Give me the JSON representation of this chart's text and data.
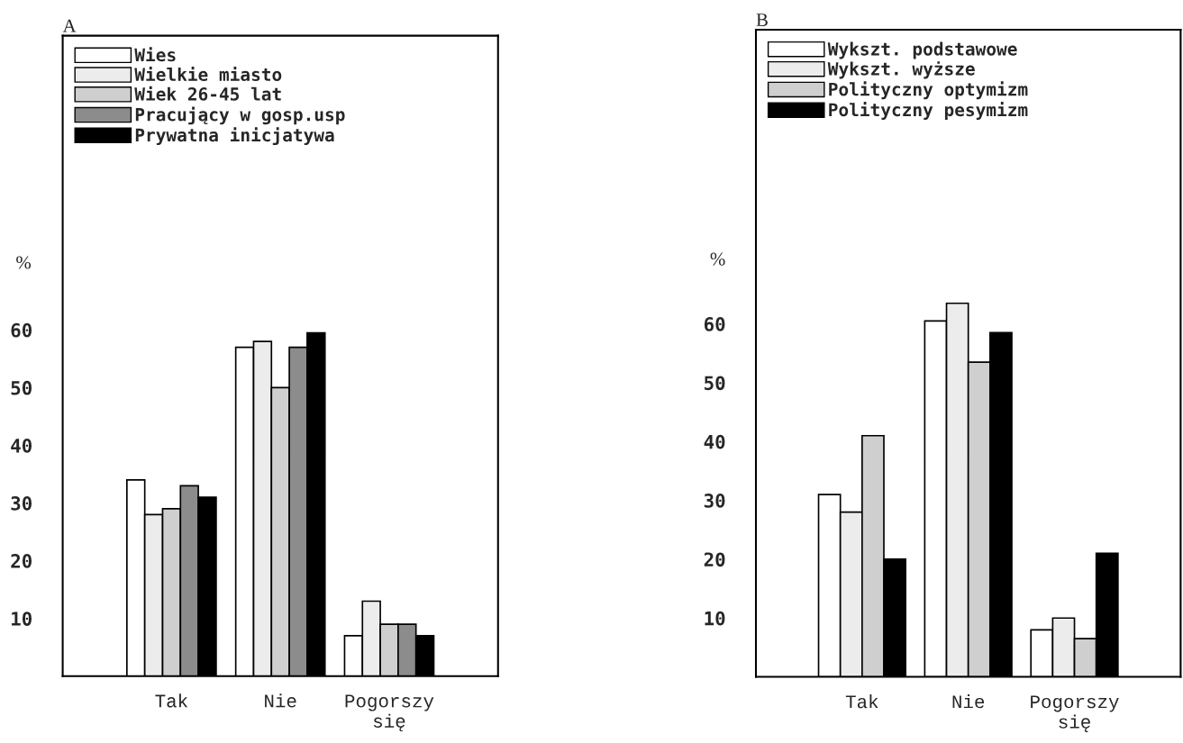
{
  "chart_data": [
    {
      "type": "bar",
      "title": "A",
      "ylabel": "%",
      "categories": [
        "Tak",
        "Nie",
        "Pogorszy\nsię"
      ],
      "series": [
        {
          "name": "Wies",
          "color": "#ffffff",
          "values": [
            34,
            57,
            7
          ]
        },
        {
          "name": "Wielkie miasto",
          "color": "#ececec",
          "values": [
            28,
            58,
            13
          ]
        },
        {
          "name": "Wiek 26-45 lat",
          "color": "#cfcfcf",
          "values": [
            29,
            50,
            9
          ]
        },
        {
          "name": "Pracujący w gosp.usp",
          "color": "#8c8c8c",
          "values": [
            33,
            57,
            9
          ]
        },
        {
          "name": "Prywatna inicjatywa",
          "color": "#000000",
          "values": [
            31,
            59.5,
            7
          ]
        }
      ],
      "ylim": [
        0,
        111
      ],
      "yticks": [
        10,
        20,
        30,
        40,
        50,
        60
      ],
      "legend": "top left",
      "grid": false
    },
    {
      "type": "bar",
      "title": "B",
      "ylabel": "%",
      "categories": [
        "Tak",
        "Nie",
        "Pogorszy\nsię"
      ],
      "series": [
        {
          "name": "Wykszt. podstawowe",
          "color": "#ffffff",
          "values": [
            31,
            60.5,
            8
          ]
        },
        {
          "name": "Wykszt. wyższe",
          "color": "#ececec",
          "values": [
            28,
            63.5,
            10
          ]
        },
        {
          "name": "Polityczny optymizm",
          "color": "#cfcfcf",
          "values": [
            41,
            53.5,
            6.5
          ]
        },
        {
          "name": "Polityczny pesymizm",
          "color": "#000000",
          "values": [
            20,
            58.5,
            21
          ]
        }
      ],
      "ylim": [
        0,
        110
      ],
      "yticks": [
        10,
        20,
        30,
        40,
        50,
        60
      ],
      "legend": "top left",
      "grid": false
    }
  ]
}
